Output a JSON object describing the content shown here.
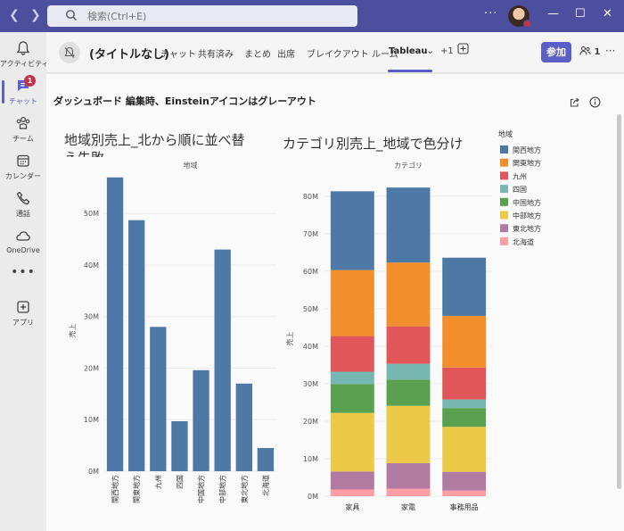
{
  "titlebar": {
    "search_placeholder": "検索(Ctrl+E)",
    "more": "···",
    "minimize": "—",
    "maximize": "☐",
    "close": "✕"
  },
  "rail": {
    "items": [
      {
        "label": "アクティビティ",
        "icon": "bell-icon"
      },
      {
        "label": "チャット",
        "icon": "chat-icon",
        "badge": "1"
      },
      {
        "label": "チーム",
        "icon": "teams-icon"
      },
      {
        "label": "カレンダー",
        "icon": "calendar-icon"
      },
      {
        "label": "通話",
        "icon": "phone-icon"
      },
      {
        "label": "OneDrive",
        "icon": "cloud-icon"
      },
      {
        "label": "アプリ",
        "icon": "add-app-icon"
      }
    ],
    "more": "•••"
  },
  "header": {
    "title": "(タイトルなし)",
    "tabs": [
      "チャット",
      "共有済み",
      "まとめ",
      "出席",
      "ブレイクアウト ルーム",
      "Tableau"
    ],
    "active_tab": "Tableau",
    "overflow": "+1",
    "join_label": "参加",
    "participants": "1",
    "more": "···"
  },
  "dashboard": {
    "title": "ダッシュボード 編集時、Einsteinアイコンはグレーアウト",
    "colors": {
      "bar": "#4e79a7",
      "関西地方": "#4e79a7",
      "関東地方": "#f28e2b",
      "九州": "#e15759",
      "四国": "#76b7b2",
      "中国地方": "#59a14f",
      "中部地方": "#edc948",
      "東北地方": "#b07aa1",
      "北海道": "#ff9da7"
    }
  },
  "chart_data": [
    {
      "type": "bar",
      "title": "地域別売上_北から順に並べ替え失敗",
      "header": "地域",
      "ylabel": "売上",
      "categories": [
        "関西地方",
        "関東地方",
        "九州",
        "四国",
        "中国地方",
        "中部地方",
        "東北地方",
        "北海道"
      ],
      "values": [
        57.0,
        48.7,
        28.0,
        9.7,
        19.6,
        43.0,
        17.0,
        4.5
      ],
      "yticks": [
        "0M",
        "10M",
        "20M",
        "30M",
        "40M",
        "50M"
      ],
      "ylim": [
        0,
        58
      ]
    },
    {
      "type": "bar",
      "stacked": true,
      "title": "カテゴリ別売上_地域で色分け",
      "header": "カテゴリ",
      "ylabel": "売上",
      "categories": [
        "家具",
        "家電",
        "事務用品"
      ],
      "yticks": [
        "0M",
        "10M",
        "20M",
        "30M",
        "40M",
        "50M",
        "60M",
        "70M",
        "80M"
      ],
      "ylim": [
        0,
        84
      ],
      "series": [
        {
          "name": "北海道",
          "values": [
            1.8,
            2.0,
            1.5
          ]
        },
        {
          "name": "東北地方",
          "values": [
            4.8,
            6.8,
            5.0
          ]
        },
        {
          "name": "中部地方",
          "values": [
            15.6,
            15.3,
            12.0
          ]
        },
        {
          "name": "中国地方",
          "values": [
            7.7,
            7.0,
            5.0
          ]
        },
        {
          "name": "四国",
          "values": [
            3.3,
            4.2,
            2.3
          ]
        },
        {
          "name": "九州",
          "values": [
            9.5,
            10.0,
            8.5
          ]
        },
        {
          "name": "関東地方",
          "values": [
            17.6,
            17.0,
            13.8
          ]
        },
        {
          "name": "関西地方",
          "values": [
            21.0,
            20.0,
            15.5
          ]
        }
      ],
      "legend": {
        "title": "地域",
        "placement": "right",
        "order": [
          "関西地方",
          "関東地方",
          "九州",
          "四国",
          "中国地方",
          "中部地方",
          "東北地方",
          "北海道"
        ]
      }
    }
  ]
}
